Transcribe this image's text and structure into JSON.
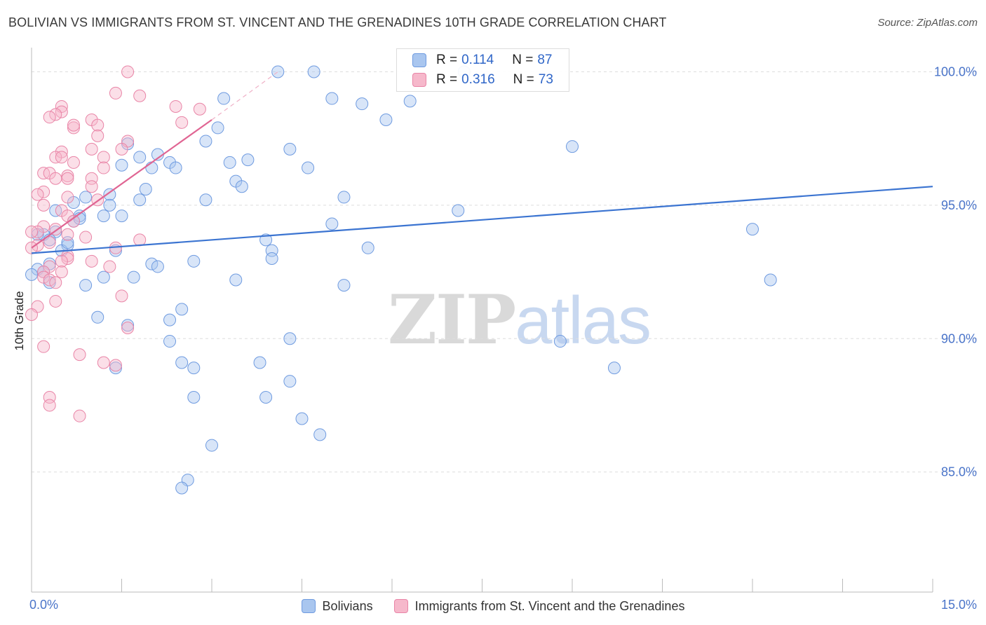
{
  "header": {
    "title": "BOLIVIAN VS IMMIGRANTS FROM ST. VINCENT AND THE GRENADINES 10TH GRADE CORRELATION CHART",
    "source": "Source: ZipAtlas.com"
  },
  "watermark": {
    "zip": "ZIP",
    "atlas": "atlas"
  },
  "stats": {
    "rows": [
      {
        "r_label": "R =",
        "r_value": "0.114",
        "n_label": "N =",
        "n_value": "87",
        "color": "#a9c6ef",
        "border": "#6f9be0"
      },
      {
        "r_label": "R =",
        "r_value": "0.316",
        "n_label": "N =",
        "n_value": "73",
        "color": "#f6b8cb",
        "border": "#e985a7"
      }
    ]
  },
  "legend": {
    "items": [
      {
        "label": "Bolivians",
        "color": "#a9c6ef",
        "border": "#6f9be0"
      },
      {
        "label": "Immigrants from St. Vincent and the Grenadines",
        "color": "#f6b8cb",
        "border": "#e985a7"
      }
    ]
  },
  "chart_data": {
    "type": "scatter",
    "title": "BOLIVIAN VS IMMIGRANTS FROM ST. VINCENT AND THE GRENADINES 10TH GRADE CORRELATION CHART",
    "xlabel": "",
    "ylabel": "10th Grade",
    "xlim": [
      0,
      15
    ],
    "ylim": [
      80.5,
      100.8
    ],
    "x_tick_labels": [
      {
        "value": 0,
        "label": "0.0%"
      },
      {
        "value": 15,
        "label": "15.0%"
      }
    ],
    "x_minor_ticks": [
      1.5,
      3.0,
      4.5,
      6.0,
      7.5,
      9.0,
      10.5,
      12.0,
      13.5,
      15.0
    ],
    "y_ticks": [
      {
        "value": 85,
        "label": "85.0%"
      },
      {
        "value": 90,
        "label": "90.0%"
      },
      {
        "value": 95,
        "label": "95.0%"
      },
      {
        "value": 100,
        "label": "100.0%"
      }
    ],
    "grid": "horizontal dashed",
    "legend_position": "bottom",
    "colors": {
      "blue": "#3b74d1",
      "pink": "#e06593",
      "blue_fill": "#a9c6ef",
      "pink_fill": "#f6b8cb"
    },
    "series": [
      {
        "name": "Bolivians",
        "color": "#3b74d1",
        "trend": {
          "x": [
            0,
            15
          ],
          "y": [
            93.2,
            95.7
          ]
        },
        "points": [
          [
            4.1,
            100.0
          ],
          [
            4.7,
            100.0
          ],
          [
            7.2,
            100.0
          ],
          [
            3.2,
            99.0
          ],
          [
            5.0,
            99.0
          ],
          [
            5.5,
            98.8
          ],
          [
            6.3,
            98.9
          ],
          [
            5.9,
            98.2
          ],
          [
            3.1,
            97.9
          ],
          [
            2.9,
            97.4
          ],
          [
            1.6,
            97.3
          ],
          [
            9.0,
            97.2
          ],
          [
            4.3,
            97.1
          ],
          [
            2.1,
            96.9
          ],
          [
            1.8,
            96.8
          ],
          [
            2.3,
            96.6
          ],
          [
            1.5,
            96.5
          ],
          [
            3.3,
            96.6
          ],
          [
            3.6,
            96.7
          ],
          [
            2.4,
            96.4
          ],
          [
            2.0,
            96.4
          ],
          [
            4.6,
            96.4
          ],
          [
            3.4,
            95.9
          ],
          [
            3.5,
            95.7
          ],
          [
            1.9,
            95.6
          ],
          [
            1.3,
            95.4
          ],
          [
            0.9,
            95.3
          ],
          [
            5.2,
            95.3
          ],
          [
            1.8,
            95.2
          ],
          [
            2.9,
            95.2
          ],
          [
            0.7,
            95.1
          ],
          [
            1.3,
            95.0
          ],
          [
            0.4,
            94.8
          ],
          [
            7.1,
            94.8
          ],
          [
            1.2,
            94.6
          ],
          [
            1.5,
            94.6
          ],
          [
            0.8,
            94.6
          ],
          [
            0.7,
            94.4
          ],
          [
            5.0,
            94.3
          ],
          [
            0.4,
            94.0
          ],
          [
            0.2,
            93.9
          ],
          [
            12.0,
            94.1
          ],
          [
            0.3,
            93.7
          ],
          [
            3.9,
            93.7
          ],
          [
            0.6,
            93.5
          ],
          [
            1.4,
            93.3
          ],
          [
            5.6,
            93.4
          ],
          [
            4.0,
            93.3
          ],
          [
            0.5,
            93.3
          ],
          [
            2.7,
            92.9
          ],
          [
            2.0,
            92.8
          ],
          [
            2.1,
            92.7
          ],
          [
            4.0,
            93.0
          ],
          [
            0.3,
            92.8
          ],
          [
            0.1,
            92.6
          ],
          [
            0.2,
            92.5
          ],
          [
            0.0,
            92.4
          ],
          [
            1.2,
            92.3
          ],
          [
            1.7,
            92.3
          ],
          [
            3.4,
            92.2
          ],
          [
            12.3,
            92.2
          ],
          [
            0.3,
            92.1
          ],
          [
            0.9,
            92.0
          ],
          [
            5.2,
            92.0
          ],
          [
            2.5,
            91.1
          ],
          [
            1.1,
            90.8
          ],
          [
            2.3,
            90.7
          ],
          [
            1.6,
            90.5
          ],
          [
            4.3,
            90.0
          ],
          [
            2.3,
            89.9
          ],
          [
            8.8,
            89.9
          ],
          [
            2.5,
            89.1
          ],
          [
            3.8,
            89.1
          ],
          [
            2.7,
            88.9
          ],
          [
            1.4,
            88.9
          ],
          [
            9.7,
            88.9
          ],
          [
            4.3,
            88.4
          ],
          [
            3.9,
            87.8
          ],
          [
            2.7,
            87.8
          ],
          [
            4.5,
            87.0
          ],
          [
            4.8,
            86.4
          ],
          [
            3.0,
            86.0
          ],
          [
            2.6,
            84.7
          ],
          [
            2.5,
            84.4
          ],
          [
            0.1,
            93.9
          ],
          [
            0.6,
            93.6
          ],
          [
            0.8,
            94.5
          ]
        ]
      },
      {
        "name": "Immigrants from St. Vincent and the Grenadines",
        "color": "#e06593",
        "trend": {
          "x": [
            0,
            3.0
          ],
          "y": [
            93.4,
            98.2
          ]
        },
        "trend_extension": {
          "x": [
            3.0,
            4.1
          ],
          "y": [
            98.2,
            100.0
          ]
        },
        "points": [
          [
            1.6,
            100.0
          ],
          [
            1.4,
            99.2
          ],
          [
            1.8,
            99.1
          ],
          [
            2.4,
            98.7
          ],
          [
            0.5,
            98.7
          ],
          [
            2.8,
            98.6
          ],
          [
            0.5,
            98.5
          ],
          [
            0.4,
            98.4
          ],
          [
            0.3,
            98.3
          ],
          [
            1.0,
            98.2
          ],
          [
            1.1,
            98.0
          ],
          [
            2.5,
            98.1
          ],
          [
            0.7,
            97.9
          ],
          [
            0.7,
            98.0
          ],
          [
            1.1,
            97.6
          ],
          [
            1.6,
            97.4
          ],
          [
            1.0,
            97.1
          ],
          [
            1.5,
            97.1
          ],
          [
            0.5,
            97.0
          ],
          [
            0.4,
            96.8
          ],
          [
            0.5,
            96.8
          ],
          [
            1.2,
            96.8
          ],
          [
            0.7,
            96.6
          ],
          [
            1.2,
            96.4
          ],
          [
            0.2,
            96.2
          ],
          [
            0.6,
            96.1
          ],
          [
            0.3,
            96.2
          ],
          [
            0.4,
            96.0
          ],
          [
            0.6,
            96.0
          ],
          [
            1.0,
            96.0
          ],
          [
            1.0,
            95.7
          ],
          [
            0.2,
            95.5
          ],
          [
            0.1,
            95.4
          ],
          [
            0.6,
            95.3
          ],
          [
            1.1,
            95.2
          ],
          [
            0.2,
            95.0
          ],
          [
            0.5,
            94.8
          ],
          [
            0.6,
            94.6
          ],
          [
            0.7,
            94.4
          ],
          [
            0.2,
            94.2
          ],
          [
            0.4,
            94.1
          ],
          [
            0.1,
            94.0
          ],
          [
            0.0,
            94.0
          ],
          [
            0.6,
            93.9
          ],
          [
            0.9,
            93.8
          ],
          [
            1.8,
            93.7
          ],
          [
            0.3,
            93.6
          ],
          [
            1.4,
            93.4
          ],
          [
            0.1,
            93.5
          ],
          [
            0.6,
            93.1
          ],
          [
            0.6,
            93.0
          ],
          [
            1.0,
            92.9
          ],
          [
            0.5,
            92.9
          ],
          [
            0.3,
            92.7
          ],
          [
            1.3,
            92.7
          ],
          [
            0.2,
            92.5
          ],
          [
            0.5,
            92.5
          ],
          [
            0.2,
            92.3
          ],
          [
            0.3,
            92.2
          ],
          [
            0.4,
            92.1
          ],
          [
            1.5,
            91.6
          ],
          [
            0.4,
            91.4
          ],
          [
            0.1,
            91.2
          ],
          [
            0.0,
            90.9
          ],
          [
            1.6,
            90.4
          ],
          [
            0.2,
            89.7
          ],
          [
            0.8,
            89.4
          ],
          [
            1.2,
            89.1
          ],
          [
            1.4,
            89.0
          ],
          [
            0.3,
            87.8
          ],
          [
            0.3,
            87.5
          ],
          [
            0.8,
            87.1
          ],
          [
            0.0,
            93.4
          ]
        ]
      }
    ]
  }
}
